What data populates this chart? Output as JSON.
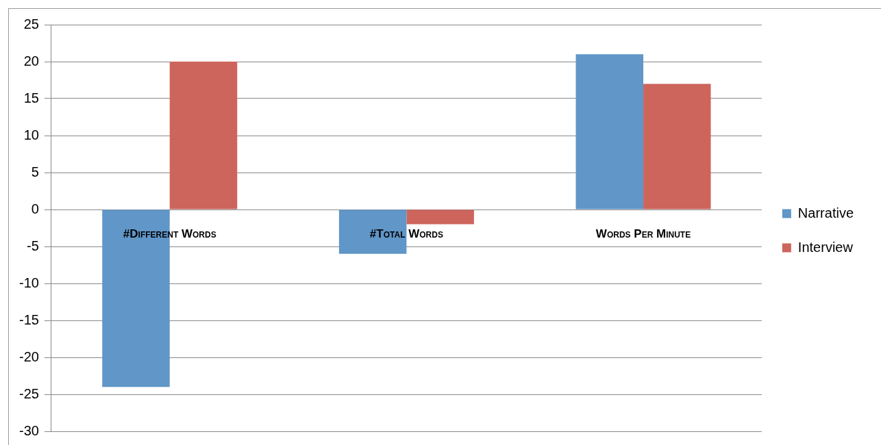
{
  "chart_data": {
    "type": "bar",
    "categories": [
      "#Different Words",
      "#Total Words",
      "Words Per Minute"
    ],
    "series": [
      {
        "name": "Narrative",
        "color": "#6096c8",
        "values": [
          -24,
          -6,
          21
        ]
      },
      {
        "name": "Interview",
        "color": "#cd655d",
        "values": [
          20,
          -2,
          17
        ]
      }
    ],
    "ylim": [
      -30,
      25
    ],
    "yticks": [
      -30,
      -25,
      -20,
      -15,
      -10,
      -5,
      0,
      5,
      10,
      15,
      20,
      25
    ],
    "grid": "y",
    "legend": "right"
  }
}
